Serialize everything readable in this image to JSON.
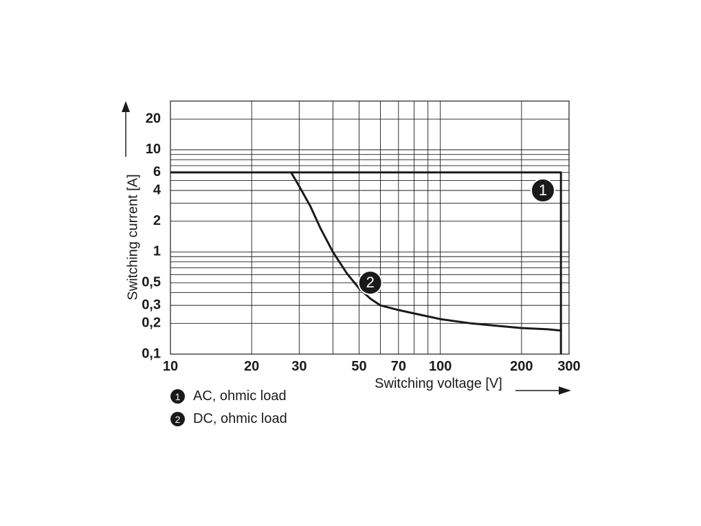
{
  "chart_data": {
    "type": "line",
    "title": "",
    "xlabel": "Switching voltage [V]",
    "ylabel": "Switching current [A]",
    "x_scale": "log",
    "y_scale": "log",
    "xlim": [
      10,
      300
    ],
    "ylim": [
      0.1,
      30
    ],
    "x_tick_labels": [
      "10",
      "20",
      "30",
      "50",
      "70",
      "100",
      "200",
      "300"
    ],
    "x_ticks": [
      10,
      20,
      30,
      50,
      70,
      100,
      200,
      300
    ],
    "y_tick_labels": [
      "0,1",
      "0,2",
      "0,3",
      "0,5",
      "1",
      "2",
      "4",
      "6",
      "10",
      "20"
    ],
    "y_ticks": [
      0.1,
      0.2,
      0.3,
      0.5,
      1,
      2,
      4,
      6,
      10,
      20
    ],
    "x_gridlines": [
      10,
      20,
      30,
      40,
      50,
      60,
      70,
      80,
      90,
      100,
      200,
      300
    ],
    "y_gridlines": [
      0.1,
      0.2,
      0.3,
      0.4,
      0.5,
      0.6,
      0.7,
      0.8,
      0.9,
      1,
      2,
      3,
      4,
      5,
      6,
      7,
      8,
      9,
      10,
      20,
      30
    ],
    "grid": true,
    "series": [
      {
        "name": "AC, ohmic load",
        "marker": "1",
        "x": [
          10,
          280,
          280
        ],
        "y": [
          6,
          6,
          0.1
        ]
      },
      {
        "name": "DC, ohmic load",
        "marker": "2",
        "x": [
          28,
          30,
          33,
          36,
          40,
          45,
          50,
          55,
          60,
          70,
          80,
          100,
          130,
          160,
          200,
          250,
          280
        ],
        "y": [
          6,
          4.4,
          2.8,
          1.7,
          1.0,
          0.62,
          0.44,
          0.35,
          0.3,
          0.27,
          0.25,
          0.22,
          0.2,
          0.19,
          0.18,
          0.175,
          0.17
        ]
      }
    ]
  },
  "legend": [
    {
      "marker": "1",
      "label": "AC, ohmic load"
    },
    {
      "marker": "2",
      "label": "DC, ohmic load"
    }
  ]
}
